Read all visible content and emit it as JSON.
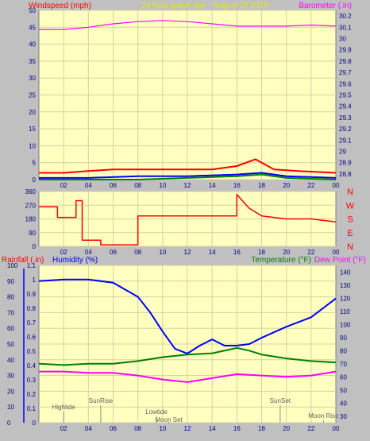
{
  "header": {
    "left_label": "Windspeed (mph)",
    "title": "24 hour graph due : August 20 2019",
    "right_label": "Barometer (.in)"
  },
  "bottom_header": {
    "rain_label": "Rainfall (.in)",
    "humidity_label": "Humidity (%)",
    "temp_label": "Temperature (°F)",
    "dew_label": "Dew Point (°F)"
  },
  "compass": [
    "N",
    "W",
    "S",
    "E",
    "N"
  ],
  "colors": {
    "plot_bg": "#ffffc0",
    "frame_bg": "#c0c0c0",
    "red": "#ff0000",
    "blue": "#0000ff",
    "green": "#008000",
    "magenta": "#ff00ff",
    "title_yellow": "#e8e800"
  },
  "chart_data": [
    {
      "type": "line",
      "name": "wind-barometer",
      "x_tick_labels": [
        "02",
        "04",
        "06",
        "08",
        "10",
        "12",
        "14",
        "16",
        "18",
        "20",
        "22",
        "00"
      ],
      "y_left_ticks": [
        0,
        5,
        10,
        15,
        20,
        25,
        30,
        35,
        40,
        45,
        50
      ],
      "ylim_left": [
        0,
        50
      ],
      "y_right_ticks": [
        "28.8",
        "28.9",
        "29",
        "29.1",
        "29.2",
        "29.3",
        "29.4",
        "29.5",
        "29.6",
        "29.7",
        "29.8",
        "29.9",
        "30",
        "30.1",
        "30.2"
      ],
      "ylim_right": [
        28.75,
        30.25
      ],
      "grid": true,
      "series": [
        {
          "color": "magenta",
          "axis": "right",
          "x": [
            0,
            2,
            4,
            6,
            8,
            10,
            12,
            14,
            16,
            18,
            20,
            22,
            24
          ],
          "values": [
            30.08,
            30.08,
            30.1,
            30.13,
            30.15,
            30.16,
            30.15,
            30.13,
            30.11,
            30.11,
            30.11,
            30.12,
            30.11
          ]
        },
        {
          "color": "red",
          "axis": "left",
          "x": [
            0,
            2,
            4,
            6,
            8,
            10,
            12,
            14,
            16,
            17.5,
            19,
            21,
            24
          ],
          "values": [
            2,
            2,
            2.5,
            3,
            3,
            3,
            3,
            3,
            4,
            6,
            3,
            2.5,
            2
          ]
        },
        {
          "color": "blue",
          "axis": "left",
          "x": [
            0,
            4,
            8,
            12,
            16,
            18,
            20,
            24
          ],
          "values": [
            0.5,
            0.5,
            1,
            1,
            1.5,
            2,
            1,
            0.5
          ]
        },
        {
          "color": "green",
          "axis": "left",
          "x": [
            0,
            8,
            12,
            16,
            18,
            20,
            24
          ],
          "values": [
            0,
            0,
            0.5,
            1,
            1.5,
            0.5,
            0
          ]
        }
      ]
    },
    {
      "type": "line",
      "name": "wind-direction",
      "x_tick_labels": [
        "02",
        "04",
        "06",
        "08",
        "10",
        "12",
        "14",
        "16",
        "18",
        "20",
        "22",
        "00"
      ],
      "y_ticks": [
        0,
        90,
        180,
        270,
        360
      ],
      "ylim": [
        0,
        360
      ],
      "grid": true,
      "series": [
        {
          "color": "red",
          "x": [
            0,
            1.5,
            1.5,
            3,
            3,
            3.5,
            3.5,
            5,
            5,
            8,
            8,
            16,
            16,
            17,
            18,
            20,
            22,
            24
          ],
          "values": [
            260,
            260,
            190,
            190,
            300,
            300,
            40,
            40,
            10,
            10,
            200,
            200,
            340,
            250,
            200,
            180,
            180,
            160
          ]
        }
      ]
    },
    {
      "type": "line",
      "name": "rain-humidity-temp",
      "x_tick_labels": [
        "02",
        "04",
        "06",
        "08",
        "10",
        "12",
        "14",
        "16",
        "18",
        "20",
        "22",
        "00"
      ],
      "y_left_ticks": [
        0,
        10,
        20,
        30,
        40,
        50,
        60,
        70,
        80,
        90,
        100
      ],
      "y_rain_ticks": [
        "0",
        "0.1",
        "0.2",
        "0.3",
        "0.4",
        "0.5",
        "0.6",
        "0.7",
        "0.8",
        "0.9",
        "1",
        "1.1"
      ],
      "ylim_left": [
        0,
        100
      ],
      "y_right_ticks": [
        30,
        40,
        50,
        60,
        70,
        80,
        90,
        100,
        110,
        120,
        130,
        140
      ],
      "ylim_right": [
        25,
        145
      ],
      "grid": true,
      "annotations": [
        "Hightide",
        "SunRise",
        "Lowtide",
        "Moon Set",
        "SunSet",
        "Moon Rise"
      ],
      "series": [
        {
          "color": "blue",
          "axis": "left",
          "x": [
            0,
            2,
            4,
            6,
            8,
            9,
            10,
            11,
            12,
            13,
            14,
            15,
            16,
            17,
            18,
            20,
            22,
            24
          ],
          "values": [
            90,
            91,
            91,
            89,
            80,
            70,
            58,
            47,
            44,
            49,
            53,
            49,
            49,
            50,
            54,
            61,
            67,
            79
          ]
        },
        {
          "color": "green",
          "axis": "right",
          "x": [
            0,
            2,
            4,
            6,
            8,
            10,
            12,
            14,
            16,
            17,
            18,
            20,
            22,
            24
          ],
          "values": [
            70,
            69,
            70,
            70,
            72,
            75,
            77,
            78,
            82,
            80,
            77,
            74,
            72,
            71
          ]
        },
        {
          "color": "magenta",
          "axis": "right",
          "x": [
            0,
            2,
            4,
            6,
            8,
            10,
            12,
            14,
            16,
            18,
            20,
            22,
            24
          ],
          "values": [
            64,
            64,
            63,
            63,
            61,
            58,
            56,
            59,
            62,
            61,
            60,
            61,
            64
          ]
        }
      ]
    }
  ]
}
